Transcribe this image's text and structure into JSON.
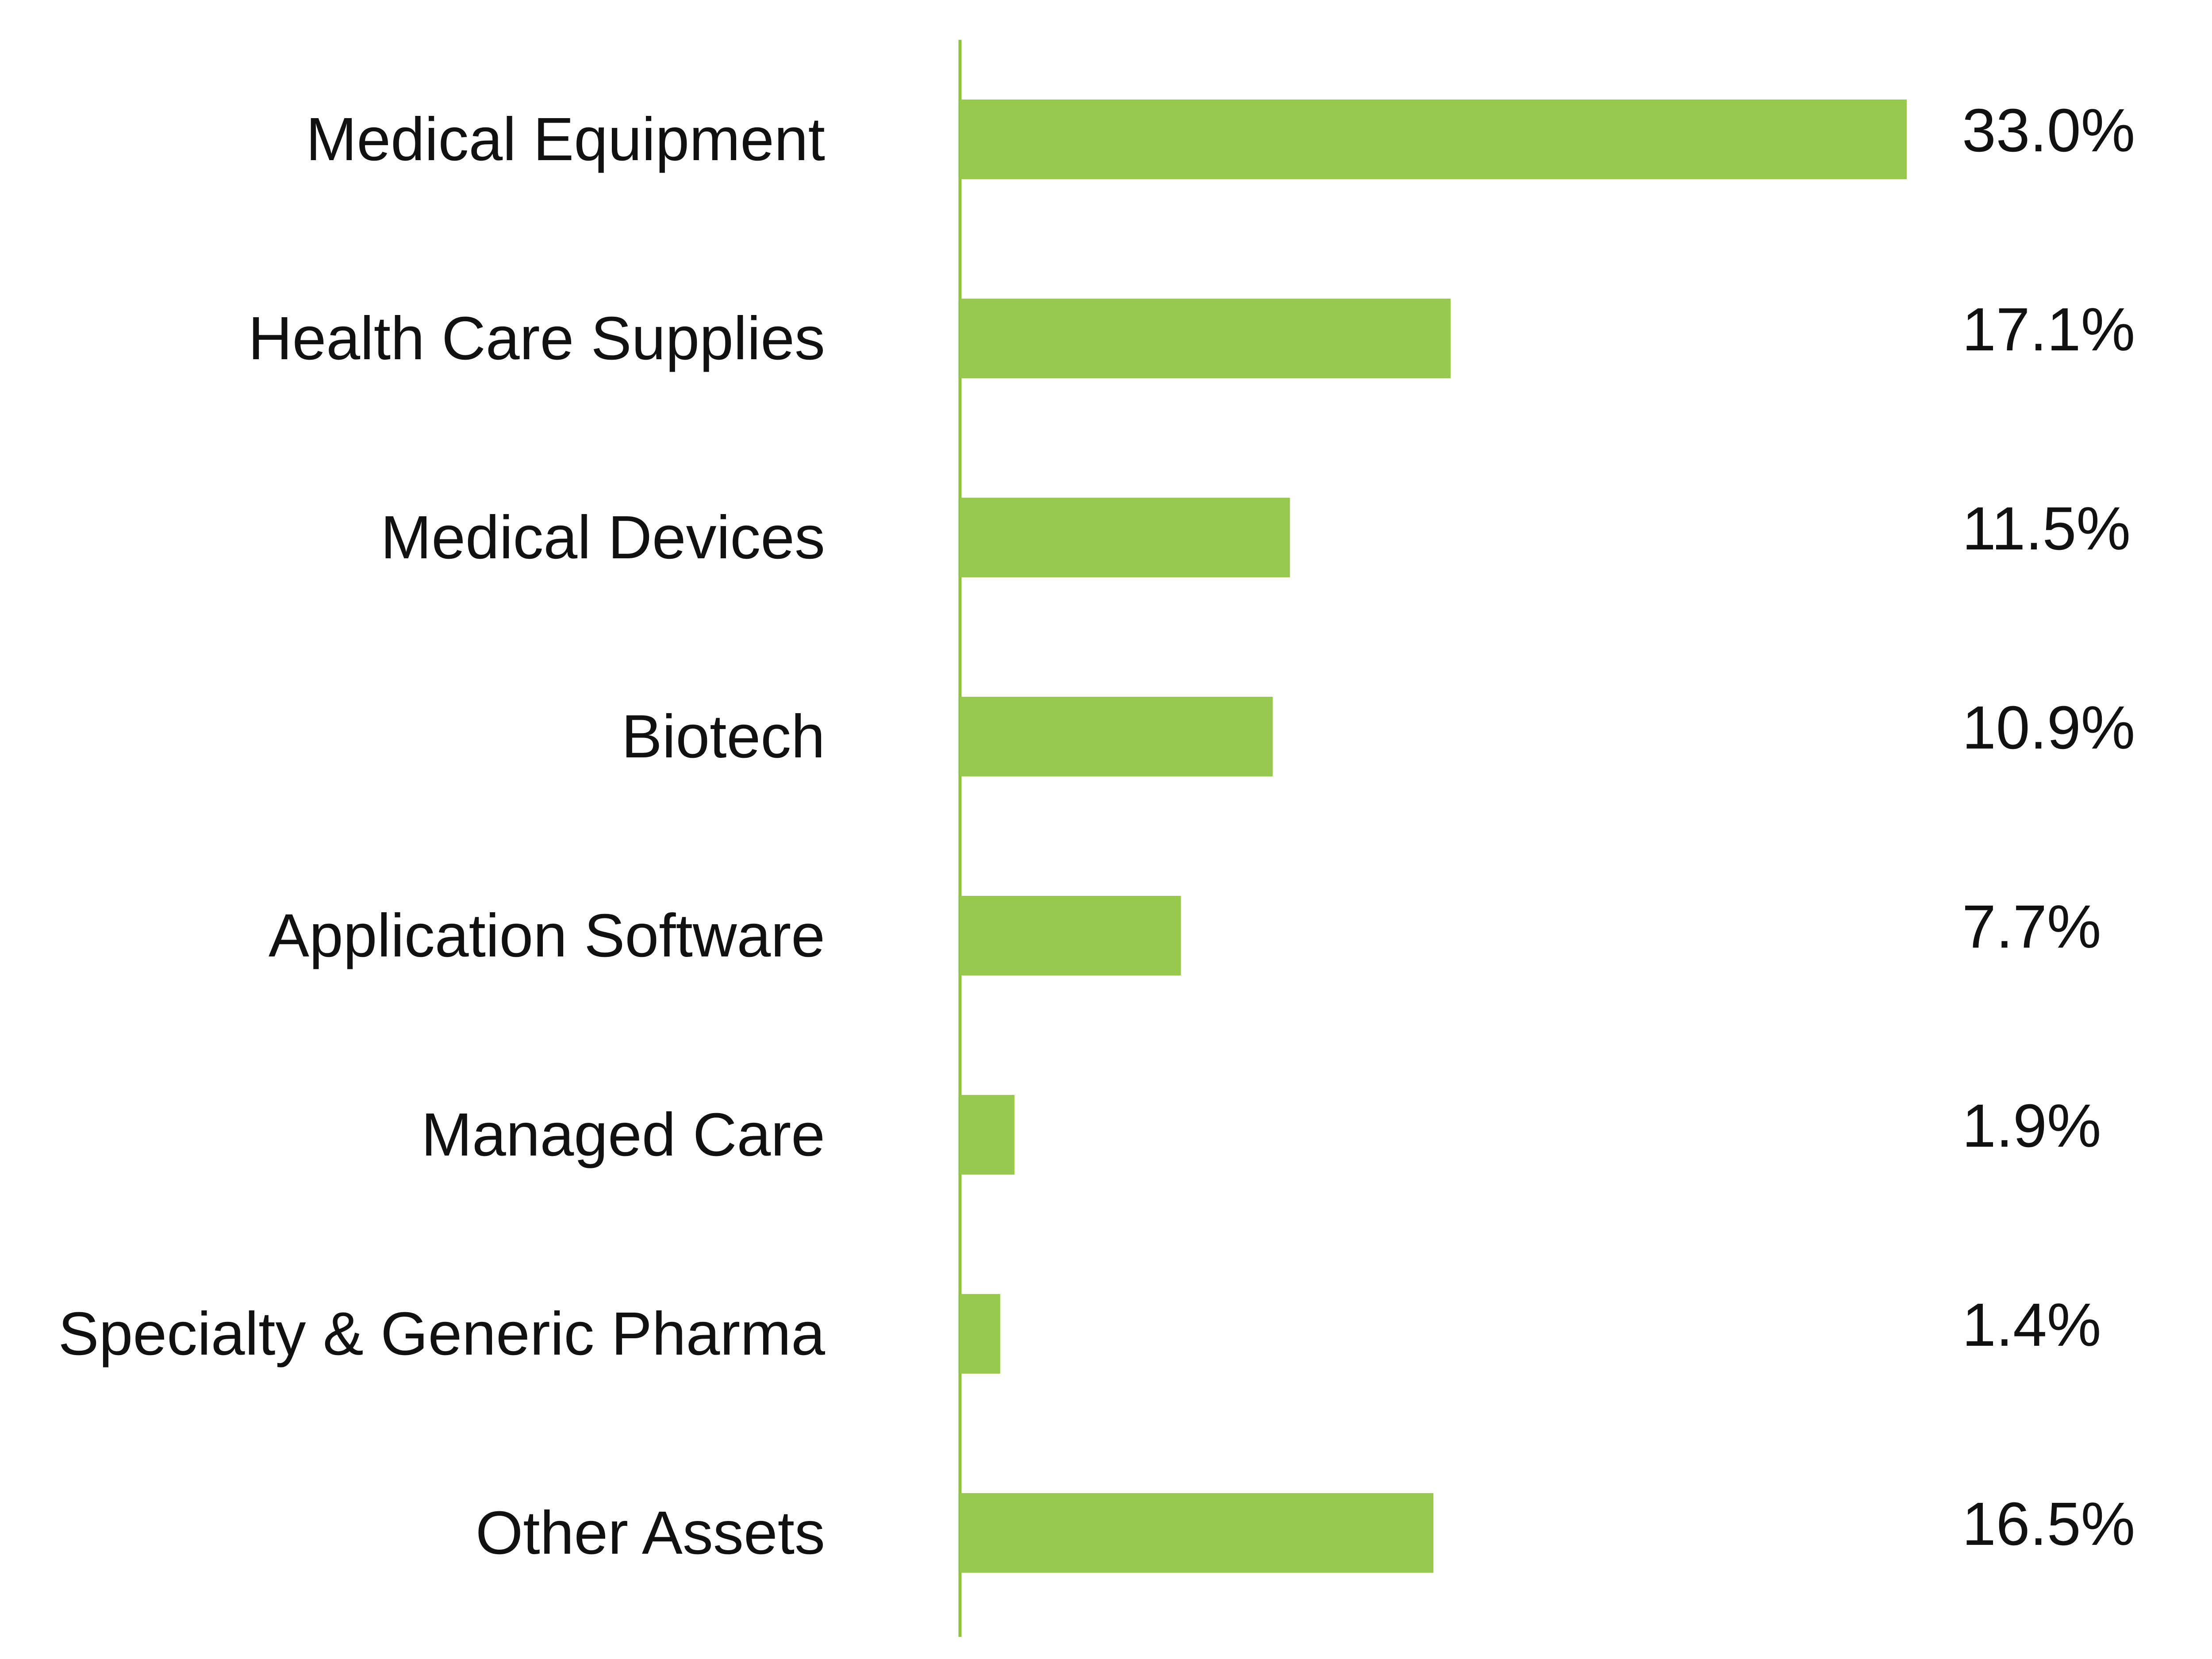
{
  "chart_data": {
    "type": "bar",
    "orientation": "horizontal",
    "categories": [
      "Medical Equipment",
      "Health Care Supplies",
      "Medical Devices",
      "Biotech",
      "Application Software",
      "Managed Care",
      "Specialty & Generic Pharma",
      "Other Assets"
    ],
    "values": [
      33.0,
      17.1,
      11.5,
      10.9,
      7.7,
      1.9,
      1.4,
      16.5
    ],
    "value_labels": [
      "33.0%",
      "17.1%",
      "11.5%",
      "10.9%",
      "7.7%",
      "1.9%",
      "1.4%",
      "16.5%"
    ],
    "unit": "%",
    "title": "",
    "xlabel": "",
    "ylabel": "",
    "xlim": [
      0,
      33.0
    ],
    "grid": false,
    "legend": "none",
    "colors": {
      "bar": "#97c94f",
      "axis": "#8cc43e",
      "text": "#111111"
    }
  }
}
